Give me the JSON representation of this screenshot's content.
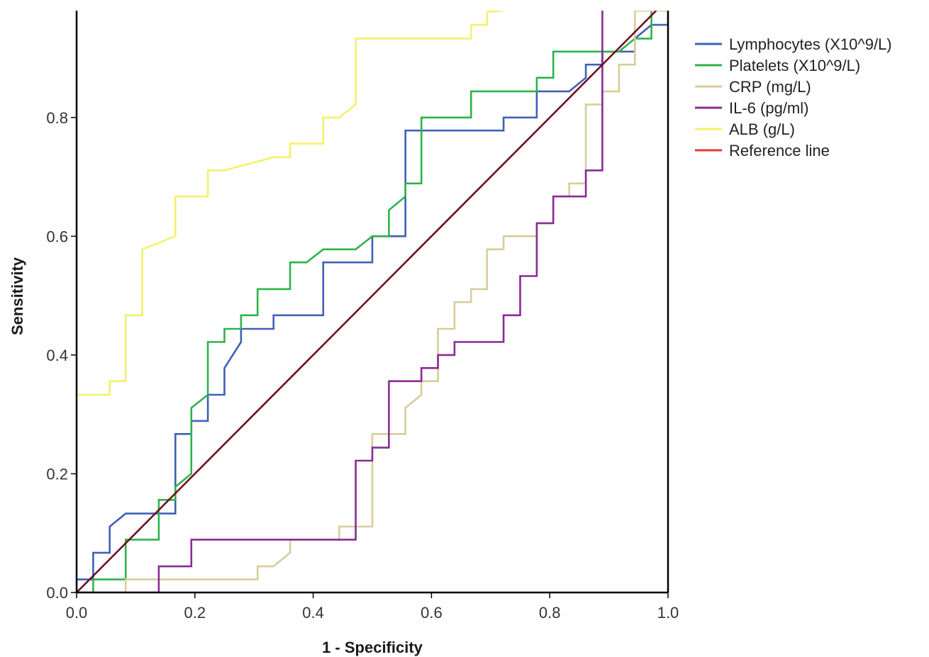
{
  "chart_data": {
    "type": "line",
    "title": "",
    "xlabel": "1 - Specificity",
    "ylabel": "Sensitivity",
    "xlim": [
      0.0,
      1.0
    ],
    "ylim": [
      0.0,
      0.98
    ],
    "xticks": [
      "0.0",
      "0.2",
      "0.4",
      "0.6",
      "0.8",
      "1.0"
    ],
    "yticks": [
      "0.0",
      "0.2",
      "0.4",
      "0.6",
      "0.8"
    ],
    "grid": false,
    "legend_position": "right",
    "series": [
      {
        "name": "Lymphocytes (X10^9/L)",
        "color": "#4060b8",
        "points": [
          [
            0,
            0
          ],
          [
            0,
            0.022
          ],
          [
            0.028,
            0.022
          ],
          [
            0.028,
            0.067
          ],
          [
            0.056,
            0.067
          ],
          [
            0.056,
            0.111
          ],
          [
            0.083,
            0.133
          ],
          [
            0.167,
            0.133
          ],
          [
            0.167,
            0.267
          ],
          [
            0.194,
            0.267
          ],
          [
            0.194,
            0.289
          ],
          [
            0.222,
            0.289
          ],
          [
            0.222,
            0.333
          ],
          [
            0.25,
            0.333
          ],
          [
            0.25,
            0.378
          ],
          [
            0.278,
            0.422
          ],
          [
            0.278,
            0.444
          ],
          [
            0.333,
            0.444
          ],
          [
            0.333,
            0.467
          ],
          [
            0.417,
            0.467
          ],
          [
            0.417,
            0.556
          ],
          [
            0.5,
            0.556
          ],
          [
            0.5,
            0.6
          ],
          [
            0.556,
            0.6
          ],
          [
            0.556,
            0.778
          ],
          [
            0.722,
            0.778
          ],
          [
            0.722,
            0.8
          ],
          [
            0.778,
            0.8
          ],
          [
            0.778,
            0.844
          ],
          [
            0.833,
            0.844
          ],
          [
            0.861,
            0.867
          ],
          [
            0.861,
            0.889
          ],
          [
            0.889,
            0.889
          ],
          [
            0.889,
            0.911
          ],
          [
            0.944,
            0.911
          ],
          [
            0.944,
            0.933
          ],
          [
            0.972,
            0.956
          ],
          [
            1.0,
            0.956
          ],
          [
            1.0,
            0.98
          ]
        ]
      },
      {
        "name": "Platelets (X10^9/L)",
        "color": "#2eb34a",
        "points": [
          [
            0,
            0
          ],
          [
            0.028,
            0
          ],
          [
            0.028,
            0.022
          ],
          [
            0.083,
            0.022
          ],
          [
            0.083,
            0.089
          ],
          [
            0.139,
            0.089
          ],
          [
            0.139,
            0.156
          ],
          [
            0.167,
            0.156
          ],
          [
            0.167,
            0.178
          ],
          [
            0.194,
            0.2
          ],
          [
            0.194,
            0.311
          ],
          [
            0.222,
            0.333
          ],
          [
            0.222,
            0.422
          ],
          [
            0.25,
            0.422
          ],
          [
            0.25,
            0.444
          ],
          [
            0.278,
            0.444
          ],
          [
            0.278,
            0.467
          ],
          [
            0.306,
            0.467
          ],
          [
            0.306,
            0.511
          ],
          [
            0.361,
            0.511
          ],
          [
            0.361,
            0.556
          ],
          [
            0.389,
            0.556
          ],
          [
            0.417,
            0.578
          ],
          [
            0.472,
            0.578
          ],
          [
            0.5,
            0.6
          ],
          [
            0.528,
            0.6
          ],
          [
            0.528,
            0.644
          ],
          [
            0.556,
            0.667
          ],
          [
            0.556,
            0.689
          ],
          [
            0.583,
            0.689
          ],
          [
            0.583,
            0.8
          ],
          [
            0.667,
            0.8
          ],
          [
            0.667,
            0.844
          ],
          [
            0.778,
            0.844
          ],
          [
            0.778,
            0.867
          ],
          [
            0.806,
            0.867
          ],
          [
            0.806,
            0.911
          ],
          [
            0.917,
            0.911
          ],
          [
            0.944,
            0.933
          ],
          [
            0.972,
            0.933
          ],
          [
            0.972,
            0.98
          ]
        ]
      },
      {
        "name": "CRP (mg/L)",
        "color": "#d6cd9a",
        "points": [
          [
            0,
            0
          ],
          [
            0.083,
            0
          ],
          [
            0.083,
            0.022
          ],
          [
            0.306,
            0.022
          ],
          [
            0.306,
            0.044
          ],
          [
            0.333,
            0.044
          ],
          [
            0.361,
            0.067
          ],
          [
            0.361,
            0.089
          ],
          [
            0.444,
            0.089
          ],
          [
            0.444,
            0.111
          ],
          [
            0.5,
            0.111
          ],
          [
            0.5,
            0.267
          ],
          [
            0.556,
            0.267
          ],
          [
            0.556,
            0.311
          ],
          [
            0.583,
            0.333
          ],
          [
            0.583,
            0.356
          ],
          [
            0.611,
            0.356
          ],
          [
            0.611,
            0.444
          ],
          [
            0.639,
            0.444
          ],
          [
            0.639,
            0.489
          ],
          [
            0.667,
            0.489
          ],
          [
            0.667,
            0.511
          ],
          [
            0.694,
            0.511
          ],
          [
            0.694,
            0.578
          ],
          [
            0.722,
            0.578
          ],
          [
            0.722,
            0.6
          ],
          [
            0.778,
            0.6
          ],
          [
            0.778,
            0.622
          ],
          [
            0.806,
            0.622
          ],
          [
            0.806,
            0.667
          ],
          [
            0.833,
            0.667
          ],
          [
            0.833,
            0.689
          ],
          [
            0.861,
            0.689
          ],
          [
            0.861,
            0.822
          ],
          [
            0.889,
            0.822
          ],
          [
            0.889,
            0.844
          ],
          [
            0.917,
            0.844
          ],
          [
            0.917,
            0.889
          ],
          [
            0.944,
            0.889
          ],
          [
            0.944,
            0.98
          ],
          [
            1.0,
            0.98
          ]
        ]
      },
      {
        "name": "IL-6 (pg/ml)",
        "color": "#8a2a96",
        "points": [
          [
            0,
            0
          ],
          [
            0.139,
            0
          ],
          [
            0.139,
            0.044
          ],
          [
            0.194,
            0.044
          ],
          [
            0.194,
            0.089
          ],
          [
            0.472,
            0.089
          ],
          [
            0.472,
            0.222
          ],
          [
            0.5,
            0.222
          ],
          [
            0.5,
            0.244
          ],
          [
            0.528,
            0.244
          ],
          [
            0.528,
            0.356
          ],
          [
            0.583,
            0.356
          ],
          [
            0.583,
            0.378
          ],
          [
            0.611,
            0.378
          ],
          [
            0.611,
            0.4
          ],
          [
            0.639,
            0.4
          ],
          [
            0.639,
            0.422
          ],
          [
            0.722,
            0.422
          ],
          [
            0.722,
            0.467
          ],
          [
            0.75,
            0.467
          ],
          [
            0.75,
            0.533
          ],
          [
            0.778,
            0.533
          ],
          [
            0.778,
            0.622
          ],
          [
            0.806,
            0.622
          ],
          [
            0.806,
            0.667
          ],
          [
            0.861,
            0.667
          ],
          [
            0.861,
            0.711
          ],
          [
            0.889,
            0.711
          ],
          [
            0.889,
            0.98
          ]
        ]
      },
      {
        "name": "ALB (g/L)",
        "color": "#f5f06a",
        "points": [
          [
            0,
            0.333
          ],
          [
            0.056,
            0.333
          ],
          [
            0.056,
            0.356
          ],
          [
            0.083,
            0.356
          ],
          [
            0.083,
            0.467
          ],
          [
            0.111,
            0.467
          ],
          [
            0.111,
            0.578
          ],
          [
            0.167,
            0.6
          ],
          [
            0.167,
            0.667
          ],
          [
            0.222,
            0.667
          ],
          [
            0.222,
            0.711
          ],
          [
            0.25,
            0.711
          ],
          [
            0.333,
            0.733
          ],
          [
            0.361,
            0.733
          ],
          [
            0.361,
            0.756
          ],
          [
            0.417,
            0.756
          ],
          [
            0.417,
            0.8
          ],
          [
            0.444,
            0.8
          ],
          [
            0.472,
            0.822
          ],
          [
            0.472,
            0.933
          ],
          [
            0.667,
            0.933
          ],
          [
            0.667,
            0.956
          ],
          [
            0.694,
            0.956
          ],
          [
            0.694,
            0.978
          ],
          [
            0.722,
            0.98
          ]
        ]
      },
      {
        "name": "Reference line",
        "color": "#e53935",
        "points": [
          [
            0,
            0
          ],
          [
            0.98,
            0.98
          ]
        ]
      }
    ]
  },
  "diagonal_color": "#6e0f1c"
}
